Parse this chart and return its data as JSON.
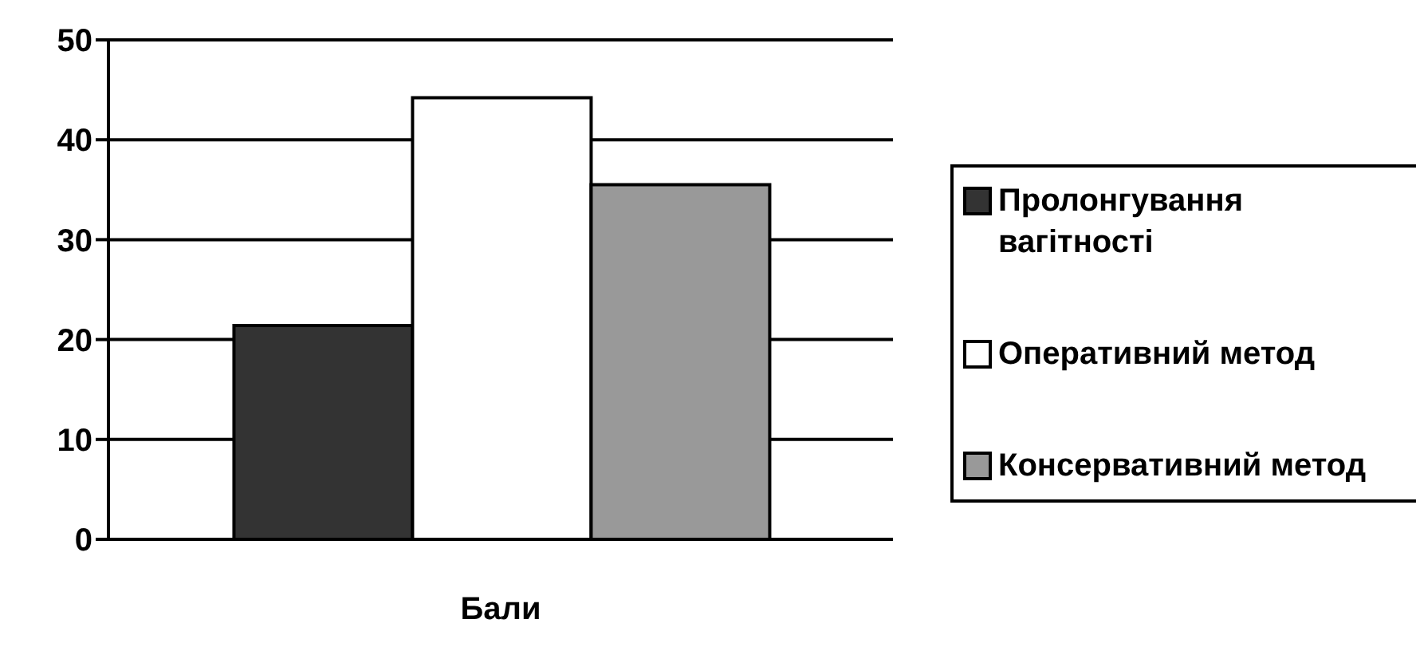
{
  "chart_data": {
    "type": "bar",
    "categories": [
      "Бали"
    ],
    "series": [
      {
        "name": "Пролонгування вагітності",
        "color": "#333333",
        "values": [
          21.4
        ]
      },
      {
        "name": "Оперативний метод",
        "color": "#ffffff",
        "values": [
          44.2
        ]
      },
      {
        "name": "Консервативний метод",
        "color": "#999999",
        "values": [
          35.5
        ]
      }
    ],
    "ylim": [
      0,
      50
    ],
    "yticks": [
      0,
      10,
      20,
      30,
      40,
      50
    ],
    "grid": "y",
    "legend": "right"
  }
}
